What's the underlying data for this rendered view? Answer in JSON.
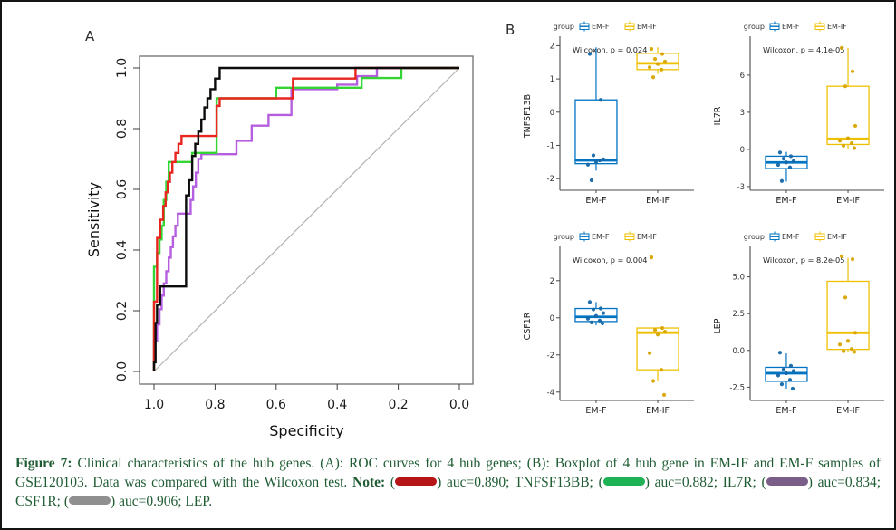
{
  "panels": {
    "a_label": "A",
    "b_label": "B"
  },
  "caption": {
    "label": "Figure 7:",
    "body": "Clinical characteristics of the hub genes. (A): ROC curves for 4 hub genes; (B): Boxplot of 4 hub gene in EM-IF and EM-F samples of GSE120103. Data was compared with the Wilcoxon test.",
    "note_label": "Note:",
    "text_color": "#1f5c33",
    "notes": [
      {
        "color": "#b51516",
        "label": "auc=0.890; TNFSF13BB;"
      },
      {
        "color": "#1fb254",
        "label": "auc=0.882; IL7R;"
      },
      {
        "color": "#7a5e87",
        "label": "auc=0.834; CSF1R;"
      },
      {
        "color": "#8f8f8f",
        "label": "auc=0.906; LEP."
      }
    ]
  },
  "chart_data": [
    {
      "type": "line",
      "name": "roc-curves",
      "xlabel": "Specificity",
      "ylabel": "Sensitivity",
      "x_ticks": [
        "1.0",
        "0.8",
        "0.6",
        "0.4",
        "0.2",
        "0.0"
      ],
      "y_ticks": [
        "0.0",
        "0.2",
        "0.4",
        "0.6",
        "0.8",
        "1.0"
      ],
      "x_reversed": true,
      "diagonal": true,
      "diagonal_color": "#b3b3b3",
      "series": [
        {
          "name": "CSF1R",
          "auc": 0.834,
          "color": "#b55fe0",
          "points": [
            [
              1.0,
              0.0
            ],
            [
              1.0,
              0.045
            ],
            [
              0.99,
              0.1
            ],
            [
              0.982,
              0.155
            ],
            [
              0.975,
              0.205
            ],
            [
              0.968,
              0.25
            ],
            [
              0.96,
              0.29
            ],
            [
              0.952,
              0.33
            ],
            [
              0.945,
              0.375
            ],
            [
              0.938,
              0.41
            ],
            [
              0.93,
              0.445
            ],
            [
              0.922,
              0.48
            ],
            [
              0.915,
              0.52
            ],
            [
              0.88,
              0.52
            ],
            [
              0.872,
              0.565
            ],
            [
              0.863,
              0.61
            ],
            [
              0.855,
              0.655
            ],
            [
              0.845,
              0.7
            ],
            [
              0.838,
              0.716
            ],
            [
              0.73,
              0.716
            ],
            [
              0.72,
              0.76
            ],
            [
              0.68,
              0.76
            ],
            [
              0.67,
              0.81
            ],
            [
              0.625,
              0.81
            ],
            [
              0.615,
              0.845
            ],
            [
              0.55,
              0.845
            ],
            [
              0.54,
              0.93
            ],
            [
              0.4,
              0.93
            ],
            [
              0.39,
              0.945
            ],
            [
              0.335,
              0.945
            ],
            [
              0.33,
              0.973
            ],
            [
              0.27,
              0.973
            ],
            [
              0.265,
              1.0
            ],
            [
              0.0,
              1.0
            ]
          ]
        },
        {
          "name": "IL7R",
          "auc": 0.882,
          "color": "#35d435",
          "points": [
            [
              1.0,
              0.0
            ],
            [
              1.0,
              0.225
            ],
            [
              0.99,
              0.345
            ],
            [
              0.982,
              0.39
            ],
            [
              0.975,
              0.435
            ],
            [
              0.968,
              0.48
            ],
            [
              0.96,
              0.565
            ],
            [
              0.952,
              0.625
            ],
            [
              0.945,
              0.69
            ],
            [
              0.875,
              0.69
            ],
            [
              0.865,
              0.72
            ],
            [
              0.795,
              0.72
            ],
            [
              0.785,
              0.9
            ],
            [
              0.6,
              0.9
            ],
            [
              0.59,
              0.935
            ],
            [
              0.32,
              0.935
            ],
            [
              0.315,
              0.967
            ],
            [
              0.19,
              0.967
            ],
            [
              0.185,
              1.0
            ],
            [
              0.0,
              1.0
            ]
          ]
        },
        {
          "name": "TNFSF13BB",
          "auc": 0.89,
          "color": "#e8251f",
          "points": [
            [
              1.0,
              0.0
            ],
            [
              1.0,
              0.13
            ],
            [
              0.99,
              0.23
            ],
            [
              0.98,
              0.44
            ],
            [
              0.97,
              0.5
            ],
            [
              0.962,
              0.545
            ],
            [
              0.955,
              0.59
            ],
            [
              0.948,
              0.625
            ],
            [
              0.94,
              0.655
            ],
            [
              0.93,
              0.69
            ],
            [
              0.92,
              0.72
            ],
            [
              0.91,
              0.75
            ],
            [
              0.9,
              0.776
            ],
            [
              0.795,
              0.776
            ],
            [
              0.785,
              0.875
            ],
            [
              0.775,
              0.9
            ],
            [
              0.545,
              0.9
            ],
            [
              0.535,
              0.965
            ],
            [
              0.34,
              0.965
            ],
            [
              0.335,
              1.0
            ],
            [
              0.0,
              1.0
            ]
          ]
        },
        {
          "name": "LEP",
          "auc": 0.906,
          "color": "#0c0c0c",
          "points": [
            [
              1.0,
              0.0
            ],
            [
              0.995,
              0.03
            ],
            [
              0.99,
              0.16
            ],
            [
              0.98,
              0.22
            ],
            [
              0.965,
              0.28
            ],
            [
              0.895,
              0.28
            ],
            [
              0.895,
              0.52
            ],
            [
              0.885,
              0.58
            ],
            [
              0.875,
              0.63
            ],
            [
              0.865,
              0.71
            ],
            [
              0.855,
              0.75
            ],
            [
              0.845,
              0.79
            ],
            [
              0.835,
              0.83
            ],
            [
              0.825,
              0.87
            ],
            [
              0.815,
              0.9
            ],
            [
              0.8,
              0.93
            ],
            [
              0.785,
              0.965
            ],
            [
              0.76,
              1.0
            ],
            [
              0.0,
              1.0
            ]
          ]
        }
      ]
    },
    {
      "type": "boxplot",
      "gene": "TNFSF13B",
      "p_label": "Wilcoxon, p = 0.024",
      "legend_title": "group",
      "ylim": [
        -2.35,
        2.12
      ],
      "y_ticks": [
        "-2",
        "-1",
        "0",
        "1",
        "2"
      ],
      "groups": [
        {
          "name": "EM-F",
          "color": "#0073C2",
          "point_color": "#1467A8",
          "box": {
            "lo": -1.76,
            "q1": -1.55,
            "median": -1.45,
            "q3": 0.37,
            "hi": 1.95
          },
          "points": [
            1.75,
            0.37,
            -1.3,
            -1.42,
            -1.5,
            -1.58,
            -1.45,
            -2.05
          ]
        },
        {
          "name": "EM-IF",
          "color": "#EFC000",
          "point_color": "#D8A400",
          "box": {
            "lo": 1.15,
            "q1": 1.28,
            "median": 1.47,
            "q3": 1.77,
            "hi": 1.95
          },
          "points": [
            1.9,
            1.75,
            1.6,
            1.52,
            1.45,
            1.35,
            1.28,
            1.05
          ]
        }
      ]
    },
    {
      "type": "boxplot",
      "gene": "IL7R",
      "p_label": "Wilcoxon, p = 4.1e-05",
      "legend_title": "group",
      "ylim": [
        -3.3,
        8.7
      ],
      "y_ticks": [
        "-3",
        "0",
        "3",
        "6"
      ],
      "groups": [
        {
          "name": "EM-F",
          "color": "#0073C2",
          "point_color": "#1467A8",
          "box": {
            "lo": -2.6,
            "q1": -1.55,
            "median": -1.05,
            "q3": -0.55,
            "hi": -0.2
          },
          "points": [
            -0.25,
            -0.55,
            -0.75,
            -0.95,
            -1.05,
            -1.25,
            -1.45,
            -2.55
          ]
        },
        {
          "name": "EM-IF",
          "color": "#EFC000",
          "point_color": "#D8A400",
          "box": {
            "lo": 0.05,
            "q1": 0.4,
            "median": 0.85,
            "q3": 5.1,
            "hi": 8.2
          },
          "points": [
            8.2,
            6.3,
            5.1,
            1.9,
            0.9,
            0.7,
            0.5,
            0.3,
            0.1
          ]
        }
      ]
    },
    {
      "type": "boxplot",
      "gene": "CSF1R",
      "p_label": "Wilcoxon, p = 0.004",
      "legend_title": "group",
      "ylim": [
        -4.45,
        3.55
      ],
      "y_ticks": [
        "-4",
        "-2",
        "0",
        "2"
      ],
      "groups": [
        {
          "name": "EM-F",
          "color": "#0073C2",
          "point_color": "#1467A8",
          "box": {
            "lo": -0.4,
            "q1": -0.2,
            "median": 0.05,
            "q3": 0.5,
            "hi": 0.85
          },
          "points": [
            0.85,
            0.5,
            0.45,
            0.25,
            0.1,
            -0.05,
            -0.15,
            -0.25,
            -0.3
          ]
        },
        {
          "name": "EM-IF",
          "color": "#EFC000",
          "point_color": "#D8A400",
          "box": {
            "lo": -3.4,
            "q1": -2.8,
            "median": -0.8,
            "q3": -0.55,
            "hi": -0.5
          },
          "points": [
            3.25,
            -0.55,
            -0.65,
            -0.75,
            -0.9,
            -1.9,
            -2.8,
            -3.4,
            -4.15
          ]
        }
      ]
    },
    {
      "type": "boxplot",
      "gene": "LEP",
      "p_label": "Wilcoxon, p = 8.2e-05",
      "legend_title": "group",
      "ylim": [
        -3.4,
        6.7
      ],
      "y_ticks": [
        "-2.5",
        "0.0",
        "2.5",
        "5.0"
      ],
      "groups": [
        {
          "name": "EM-F",
          "color": "#0073C2",
          "point_color": "#1467A8",
          "box": {
            "lo": -2.6,
            "q1": -2.1,
            "median": -1.55,
            "q3": -1.15,
            "hi": -0.2
          },
          "points": [
            -0.15,
            -1.05,
            -1.3,
            -1.4,
            -1.55,
            -1.7,
            -2.0,
            -2.3,
            -2.6
          ]
        },
        {
          "name": "EM-IF",
          "color": "#EFC000",
          "point_color": "#D8A400",
          "box": {
            "lo": -0.1,
            "q1": 0.07,
            "median": 1.2,
            "q3": 4.7,
            "hi": 6.3
          },
          "points": [
            6.4,
            6.2,
            3.6,
            1.2,
            0.65,
            0.4,
            0.1,
            -0.05,
            -0.1
          ]
        }
      ]
    }
  ]
}
